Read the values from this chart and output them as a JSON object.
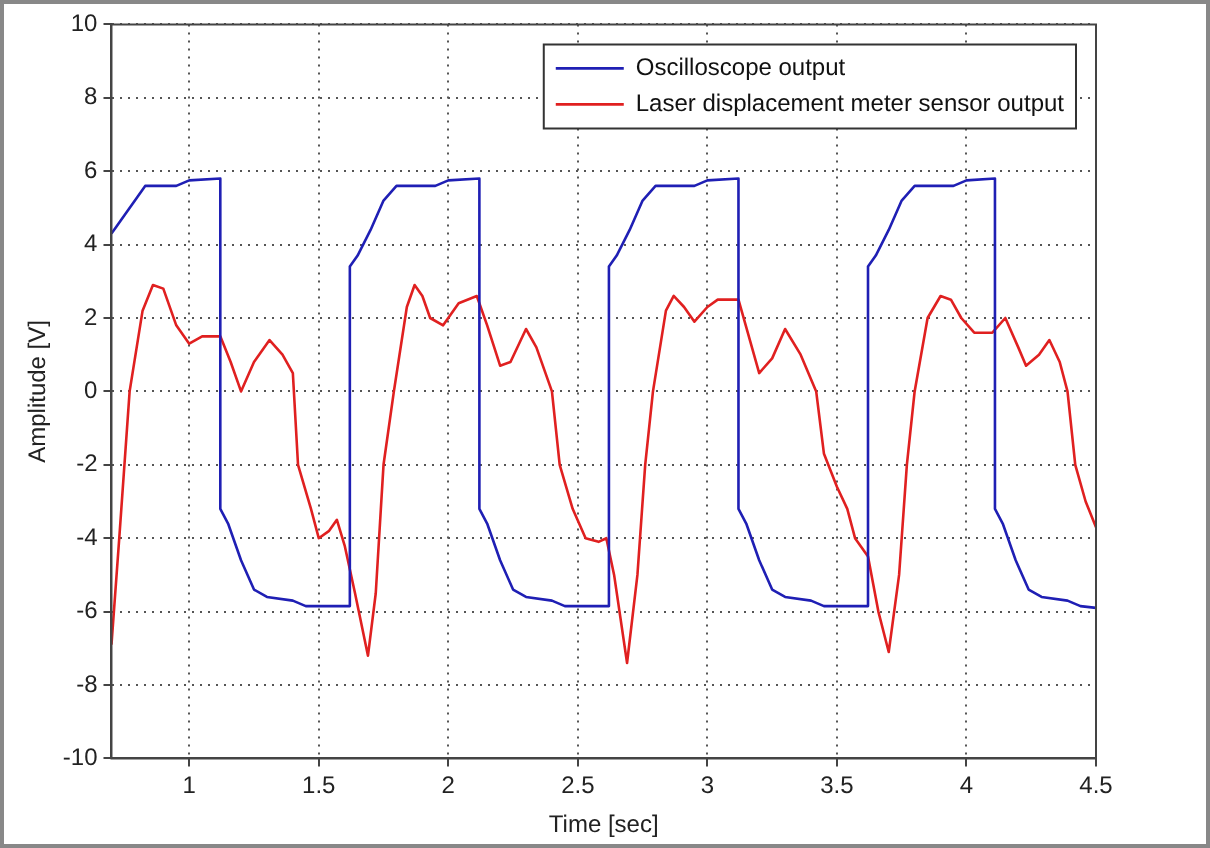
{
  "chart_data": {
    "type": "line",
    "xlabel": "Time [sec]",
    "ylabel": "Amplitude [V]",
    "xlim": [
      0.7,
      4.5
    ],
    "xticks": [
      1,
      1.5,
      2,
      2.5,
      3,
      3.5,
      4,
      4.5
    ],
    "ylim": [
      -10,
      10
    ],
    "yticks": [
      -10,
      -8,
      -6,
      -4,
      -2,
      0,
      2,
      4,
      6,
      8,
      10
    ],
    "grid": true,
    "legend": "top right",
    "marker": "none",
    "line_style": "solid",
    "series": [
      {
        "name": "Oscilloscope output",
        "color": "#1f1fb4",
        "x": [
          0.7,
          0.72,
          0.75,
          0.8,
          0.83,
          0.95,
          1.0,
          1.12,
          1.12,
          1.15,
          1.2,
          1.25,
          1.3,
          1.4,
          1.45,
          1.62,
          1.62,
          1.65,
          1.7,
          1.75,
          1.8,
          1.95,
          2.0,
          2.12,
          2.12,
          2.15,
          2.2,
          2.25,
          2.3,
          2.4,
          2.45,
          2.62,
          2.62,
          2.65,
          2.7,
          2.75,
          2.8,
          2.95,
          3.0,
          3.12,
          3.12,
          3.15,
          3.2,
          3.25,
          3.3,
          3.4,
          3.45,
          3.62,
          3.62,
          3.65,
          3.7,
          3.75,
          3.8,
          3.95,
          4.0,
          4.11,
          4.11,
          4.14,
          4.19,
          4.24,
          4.29,
          4.39,
          4.44,
          4.5
        ],
        "values": [
          4.3,
          4.5,
          4.8,
          5.3,
          5.6,
          5.6,
          5.75,
          5.8,
          -3.2,
          -3.6,
          -4.6,
          -5.4,
          -5.6,
          -5.7,
          -5.85,
          -5.85,
          3.4,
          3.7,
          4.4,
          5.2,
          5.6,
          5.6,
          5.75,
          5.8,
          -3.2,
          -3.6,
          -4.6,
          -5.4,
          -5.6,
          -5.7,
          -5.85,
          -5.85,
          3.4,
          3.7,
          4.4,
          5.2,
          5.6,
          5.6,
          5.75,
          5.8,
          -3.2,
          -3.6,
          -4.6,
          -5.4,
          -5.6,
          -5.7,
          -5.85,
          -5.85,
          3.4,
          3.7,
          4.4,
          5.2,
          5.6,
          5.6,
          5.75,
          5.8,
          -3.2,
          -3.6,
          -4.6,
          -5.4,
          -5.6,
          -5.7,
          -5.85,
          -5.9
        ]
      },
      {
        "name": "Laser displacement meter sensor output",
        "color": "#e02020",
        "x": [
          0.7,
          0.73,
          0.77,
          0.82,
          0.86,
          0.9,
          0.95,
          1.0,
          1.05,
          1.12,
          1.16,
          1.2,
          1.25,
          1.31,
          1.36,
          1.4,
          1.42,
          1.47,
          1.5,
          1.54,
          1.57,
          1.6,
          1.64,
          1.69,
          1.72,
          1.75,
          1.79,
          1.84,
          1.87,
          1.9,
          1.93,
          1.98,
          2.04,
          2.11,
          2.15,
          2.2,
          2.24,
          2.3,
          2.34,
          2.4,
          2.43,
          2.48,
          2.53,
          2.58,
          2.61,
          2.64,
          2.69,
          2.73,
          2.76,
          2.79,
          2.84,
          2.87,
          2.91,
          2.95,
          3.0,
          3.04,
          3.12,
          3.16,
          3.2,
          3.25,
          3.3,
          3.36,
          3.42,
          3.45,
          3.5,
          3.54,
          3.57,
          3.62,
          3.66,
          3.7,
          3.74,
          3.77,
          3.8,
          3.85,
          3.9,
          3.94,
          3.98,
          4.03,
          4.1,
          4.15,
          4.2,
          4.23,
          4.28,
          4.32,
          4.36,
          4.39,
          4.42,
          4.46,
          4.5
        ],
        "values": [
          -6.9,
          -4,
          0,
          2.2,
          2.9,
          2.8,
          1.8,
          1.3,
          1.5,
          1.5,
          0.8,
          0,
          0.8,
          1.4,
          1.0,
          0.5,
          -2,
          -3.2,
          -4,
          -3.8,
          -3.5,
          -4.2,
          -5.5,
          -7.2,
          -5.5,
          -2,
          0,
          2.3,
          2.9,
          2.6,
          2.0,
          1.8,
          2.4,
          2.6,
          1.8,
          0.7,
          0.8,
          1.7,
          1.2,
          0,
          -2,
          -3.2,
          -4,
          -4.1,
          -4.0,
          -5,
          -7.4,
          -5,
          -2,
          0,
          2.2,
          2.6,
          2.3,
          1.9,
          2.3,
          2.5,
          2.5,
          1.5,
          0.5,
          0.9,
          1.7,
          1.0,
          0,
          -1.7,
          -2.6,
          -3.2,
          -4,
          -4.5,
          -6,
          -7.1,
          -5,
          -2,
          0,
          2.0,
          2.6,
          2.5,
          2.0,
          1.6,
          1.6,
          2.0,
          1.2,
          0.7,
          1.0,
          1.4,
          0.8,
          0,
          -2,
          -3,
          -3.7
        ]
      }
    ]
  }
}
